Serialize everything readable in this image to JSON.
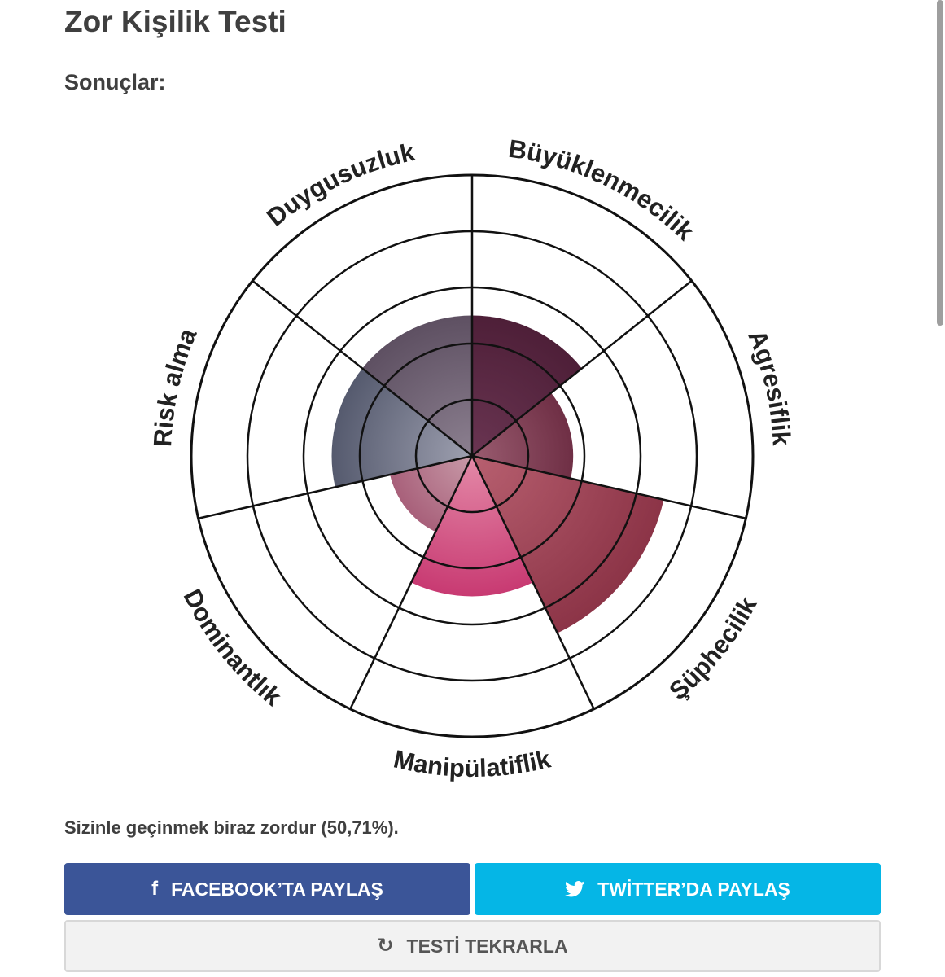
{
  "page": {
    "title": "Zor Kişilik Testi",
    "subtitle": "Sonuçlar:",
    "result_text": "Sizinle geçinmek biraz zordur (50,71%)."
  },
  "buttons": {
    "facebook": {
      "label": "FACEBOOK’TA PAYLAŞ",
      "icon": "f",
      "color": "#3b5598"
    },
    "twitter": {
      "label": "TWİTTER’DA PAYLAŞ",
      "icon": "twitter-bird-icon",
      "color": "#05b6e6"
    },
    "retry": {
      "label": "TESTİ TEKRARLA",
      "icon": "↻",
      "color": "#f2f2f2"
    }
  },
  "chart_data": {
    "type": "polar-area",
    "rings": 5,
    "max": 5,
    "categories": [
      "Büyüklenmecilik",
      "Agresiflik",
      "Şüphecilik",
      "Manipülatiflik",
      "Dominantlık",
      "Risk alma",
      "Duygusuzluk"
    ],
    "values": [
      2.5,
      1.8,
      3.5,
      2.5,
      1.5,
      2.5,
      2.5
    ],
    "colors": [
      "#4e1f38",
      "#6f2f45",
      "#8c3447",
      "#c83a72",
      "#a8607a",
      "#555a6e",
      "#5e5062"
    ],
    "center_colors": [
      "#6a3552",
      "#9a5c70",
      "#b86070",
      "#e48aa8",
      "#c89aa8",
      "#9ea0b0",
      "#8c8090"
    ]
  }
}
